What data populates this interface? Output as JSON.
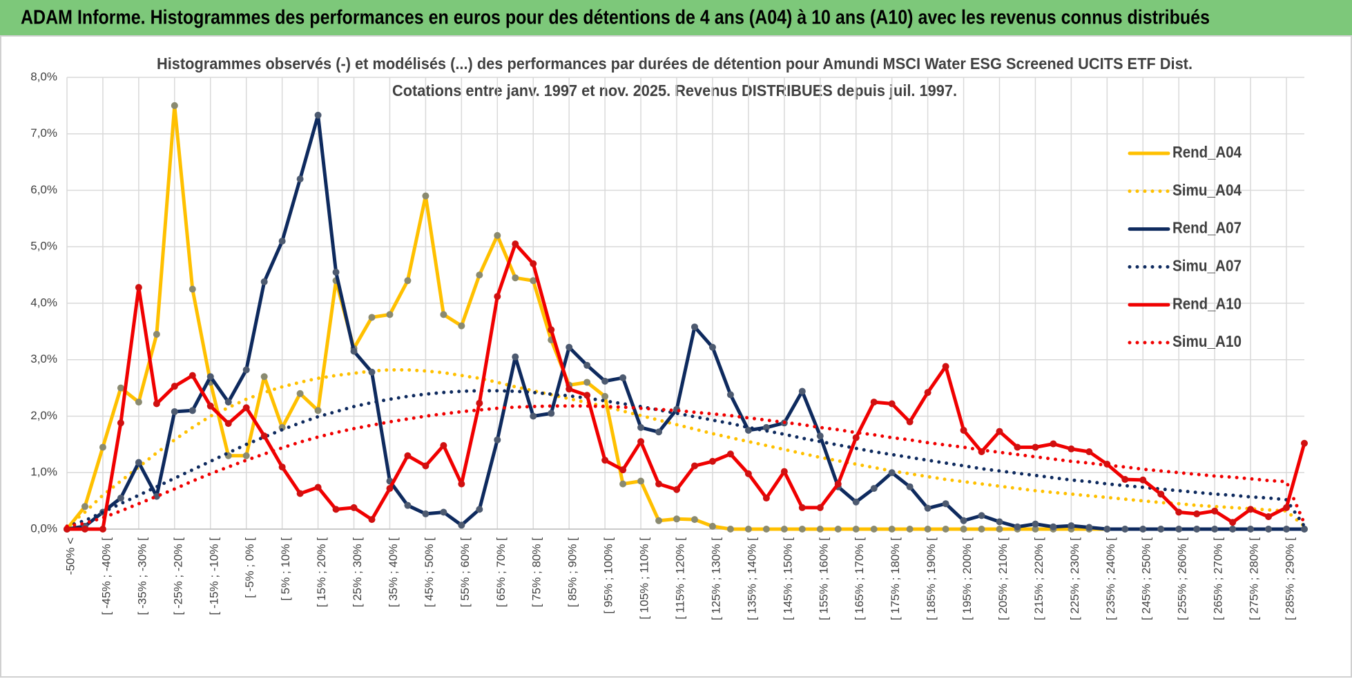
{
  "header": {
    "title": "ADAM Informe. Histogrammes des performances en euros pour des détentions de 4 ans (A04) à 10 ans (A10) avec les revenus connus distribués"
  },
  "chart_data": {
    "type": "line",
    "title": [
      "Histogrammes observés (-) et modélisés (...) des performances par durées de détention pour Amundi MSCI Water ESG Screened UCITS ETF Dist.",
      "Cotations entre janv. 1997 et nov. 2025. Revenus DISTRIBUES depuis juil. 1997."
    ],
    "categories": [
      "-50% <",
      null,
      "[ -45% ; -40% [",
      null,
      "[ -35% ; -30% [",
      null,
      "[ -25% ; -20% [",
      null,
      "[ -15% ; -10% [",
      null,
      "[ -5% ; 0% [",
      null,
      "[ 5% ; 10% [",
      null,
      "[ 15% ; 20% [",
      null,
      "[ 25% ; 30% [",
      null,
      "[ 35% ; 40% [",
      null,
      "[ 45% ; 50% [",
      null,
      "[ 55% ; 60% [",
      null,
      "[ 65% ; 70% [",
      null,
      "[ 75% ; 80% [",
      null,
      "[ 85% ; 90% [",
      null,
      "[ 95% ; 100% [",
      null,
      "[ 105% ; 110% [",
      null,
      "[ 115% ; 120% [",
      null,
      "[ 125% ; 130% [",
      null,
      "[ 135% ; 140% [",
      null,
      "[ 145% ; 150% [",
      null,
      "[ 155% ; 160% [",
      null,
      "[ 165% ; 170% [",
      null,
      "[ 175% ; 180% [",
      null,
      "[ 185% ; 190% [",
      null,
      "[ 195% ; 200% [",
      null,
      "[ 205% ; 210% [",
      null,
      "[ 215% ; 220% [",
      null,
      "[ 225% ; 230% [",
      null,
      "[ 235% ; 240% [",
      null,
      "[ 245% ; 250% [",
      null,
      "[ 255% ; 260% [",
      null,
      "[ 265% ; 270% [",
      null,
      "[ 275% ; 280% [",
      null,
      "[ 285% ; 290% [",
      null
    ],
    "series": [
      {
        "name": "Rend_A04",
        "color": "#ffc000",
        "marker_color": "#8a8a70",
        "line_style": "solid",
        "markers": true,
        "values": [
          0,
          0.4,
          1.45,
          2.5,
          2.25,
          3.45,
          7.5,
          4.25,
          2.6,
          1.3,
          1.3,
          2.7,
          1.8,
          2.4,
          2.1,
          4.4,
          3.2,
          3.75,
          3.8,
          4.4,
          5.9,
          3.8,
          3.6,
          4.5,
          5.2,
          4.45,
          4.4,
          3.35,
          2.55,
          2.6,
          2.35,
          0.8,
          0.85,
          0.15,
          0.18,
          0.17,
          0.05,
          0,
          0,
          0,
          0,
          0,
          0,
          0,
          0,
          0,
          0,
          0,
          0,
          0,
          0,
          0,
          0,
          0,
          0,
          0,
          0,
          0,
          0,
          0,
          0,
          0,
          0,
          0,
          0,
          0,
          0,
          0,
          0,
          0
        ]
      },
      {
        "name": "Simu_A04",
        "color": "#ffc000",
        "line_style": "dotted",
        "markers": false,
        "values": [
          0.05,
          0.3,
          0.6,
          0.85,
          1.1,
          1.35,
          1.58,
          1.8,
          2.0,
          2.15,
          2.3,
          2.42,
          2.52,
          2.6,
          2.67,
          2.72,
          2.76,
          2.8,
          2.82,
          2.82,
          2.8,
          2.77,
          2.72,
          2.67,
          2.6,
          2.52,
          2.45,
          2.38,
          2.31,
          2.24,
          2.17,
          2.09,
          2.01,
          1.93,
          1.85,
          1.77,
          1.69,
          1.62,
          1.55,
          1.48,
          1.41,
          1.34,
          1.27,
          1.21,
          1.15,
          1.09,
          1.03,
          0.98,
          0.93,
          0.88,
          0.84,
          0.8,
          0.76,
          0.72,
          0.68,
          0.65,
          0.62,
          0.59,
          0.56,
          0.53,
          0.5,
          0.47,
          0.45,
          0.42,
          0.4,
          0.38,
          0.36,
          0.34,
          0.32,
          0.05
        ]
      },
      {
        "name": "Rend_A07",
        "color": "#0e2a5e",
        "marker_color": "#4d5a70",
        "line_style": "solid",
        "markers": true,
        "values": [
          0,
          0.05,
          0.3,
          0.55,
          1.18,
          0.58,
          2.08,
          2.1,
          2.7,
          2.25,
          2.82,
          4.38,
          5.1,
          6.2,
          7.33,
          4.55,
          3.15,
          2.78,
          0.85,
          0.42,
          0.27,
          0.3,
          0.07,
          0.35,
          1.58,
          3.05,
          2.0,
          2.05,
          3.22,
          2.9,
          2.62,
          2.68,
          1.8,
          1.72,
          2.12,
          3.58,
          3.22,
          2.38,
          1.75,
          1.8,
          1.88,
          2.44,
          1.65,
          0.75,
          0.48,
          0.72,
          1.0,
          0.75,
          0.37,
          0.45,
          0.15,
          0.24,
          0.13,
          0.04,
          0.09,
          0.04,
          0.06,
          0.03,
          0,
          0,
          0,
          0,
          0,
          0,
          0,
          0,
          0,
          0,
          0,
          0
        ]
      },
      {
        "name": "Simu_A07",
        "color": "#0e2a5e",
        "line_style": "dotted",
        "markers": false,
        "values": [
          0.05,
          0.15,
          0.3,
          0.45,
          0.6,
          0.75,
          0.9,
          1.05,
          1.2,
          1.35,
          1.5,
          1.63,
          1.76,
          1.88,
          1.99,
          2.08,
          2.17,
          2.24,
          2.3,
          2.35,
          2.39,
          2.42,
          2.44,
          2.45,
          2.45,
          2.44,
          2.42,
          2.39,
          2.36,
          2.32,
          2.27,
          2.22,
          2.17,
          2.11,
          2.05,
          1.99,
          1.93,
          1.87,
          1.8,
          1.74,
          1.68,
          1.61,
          1.55,
          1.49,
          1.43,
          1.37,
          1.32,
          1.27,
          1.22,
          1.17,
          1.12,
          1.07,
          1.03,
          0.99,
          0.95,
          0.91,
          0.87,
          0.84,
          0.8,
          0.77,
          0.74,
          0.71,
          0.68,
          0.65,
          0.62,
          0.6,
          0.57,
          0.55,
          0.52,
          0.05
        ]
      },
      {
        "name": "Rend_A10",
        "color": "#f00000",
        "marker_color": "#d01010",
        "line_style": "solid",
        "markers": true,
        "values": [
          0,
          0,
          0,
          1.88,
          4.28,
          2.22,
          2.53,
          2.72,
          2.18,
          1.87,
          2.15,
          1.65,
          1.1,
          0.63,
          0.74,
          0.35,
          0.38,
          0.17,
          0.72,
          1.3,
          1.12,
          1.48,
          0.8,
          2.23,
          4.12,
          5.05,
          4.7,
          3.53,
          2.48,
          2.37,
          1.22,
          1.05,
          1.55,
          0.8,
          0.7,
          1.12,
          1.2,
          1.33,
          0.98,
          0.55,
          1.02,
          0.38,
          0.38,
          0.8,
          1.62,
          2.25,
          2.22,
          1.9,
          2.42,
          2.88,
          1.75,
          1.37,
          1.73,
          1.45,
          1.45,
          1.51,
          1.42,
          1.37,
          1.15,
          0.88,
          0.87,
          0.62,
          0.3,
          0.27,
          0.32,
          0.12,
          0.35,
          0.22,
          0.38,
          1.52
        ]
      },
      {
        "name": "Simu_A10",
        "color": "#f00000",
        "line_style": "dotted",
        "markers": false,
        "values": [
          0.05,
          0.1,
          0.2,
          0.32,
          0.45,
          0.58,
          0.71,
          0.85,
          0.98,
          1.1,
          1.22,
          1.33,
          1.44,
          1.54,
          1.63,
          1.71,
          1.78,
          1.84,
          1.9,
          1.95,
          2.0,
          2.04,
          2.08,
          2.11,
          2.14,
          2.16,
          2.17,
          2.18,
          2.18,
          2.18,
          2.17,
          2.16,
          2.14,
          2.12,
          2.1,
          2.07,
          2.04,
          2.01,
          1.97,
          1.93,
          1.89,
          1.85,
          1.8,
          1.76,
          1.71,
          1.67,
          1.62,
          1.58,
          1.53,
          1.49,
          1.45,
          1.4,
          1.36,
          1.32,
          1.28,
          1.24,
          1.2,
          1.17,
          1.13,
          1.1,
          1.06,
          1.03,
          1.0,
          0.97,
          0.94,
          0.92,
          0.89,
          0.86,
          0.84,
          0.1
        ]
      }
    ],
    "ylim": [
      0,
      8
    ],
    "yticks": [
      {
        "value": 0,
        "label": "0,0%"
      },
      {
        "value": 1,
        "label": "1,0%"
      },
      {
        "value": 2,
        "label": "2,0%"
      },
      {
        "value": 3,
        "label": "3,0%"
      },
      {
        "value": 4,
        "label": "4,0%"
      },
      {
        "value": 5,
        "label": "5,0%"
      },
      {
        "value": 6,
        "label": "6,0%"
      },
      {
        "value": 7,
        "label": "7,0%"
      },
      {
        "value": 8,
        "label": "8,0%"
      }
    ],
    "grid": true,
    "legend": "right"
  }
}
